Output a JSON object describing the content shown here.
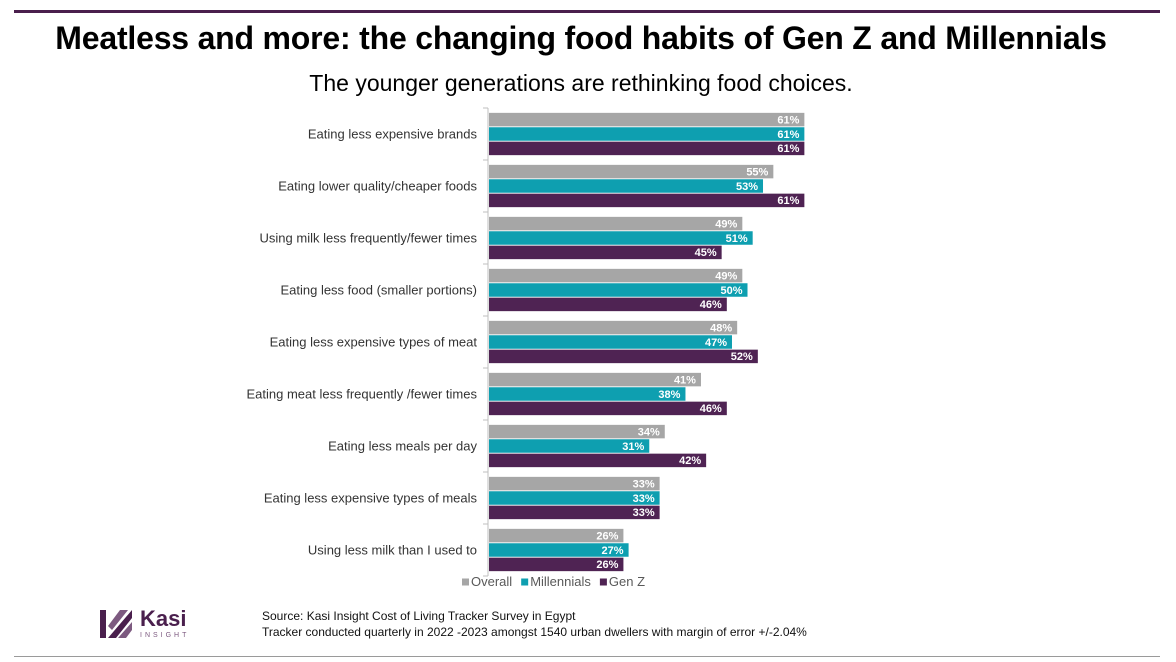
{
  "header": {
    "title": "Meatless and more: the changing food habits of Gen Z and Millennials",
    "subtitle": "The younger generations are rethinking food choices."
  },
  "chart_data": {
    "type": "bar",
    "orientation": "horizontal",
    "categories": [
      "Eating less expensive brands",
      "Eating lower quality/cheaper foods",
      "Using milk less frequently/fewer times",
      "Eating less food (smaller portions)",
      "Eating less expensive types of meat",
      "Eating meat less frequently /fewer times",
      "Eating less meals per day",
      "Eating less expensive types of meals",
      "Using less milk than I used to"
    ],
    "series": [
      {
        "name": "Overall",
        "color": "#a6a6a6",
        "values": [
          61,
          55,
          49,
          49,
          48,
          41,
          34,
          33,
          26
        ]
      },
      {
        "name": "Millennials",
        "color": "#0e9fb0",
        "values": [
          61,
          53,
          51,
          50,
          47,
          38,
          31,
          33,
          27
        ]
      },
      {
        "name": "Gen Z",
        "color": "#4f2353",
        "values": [
          61,
          61,
          45,
          46,
          52,
          46,
          42,
          33,
          26
        ]
      }
    ],
    "value_suffix": "%",
    "xlim": [
      0,
      100
    ],
    "grid": false,
    "legend_position": "bottom"
  },
  "logo": {
    "name": "Kasi",
    "tagline": "INSIGHT",
    "color": "#4a1f4d"
  },
  "footer": {
    "source_line": "Source: Kasi Insight Cost of Living Tracker Survey  in Egypt",
    "note_line": "Tracker conducted quarterly in 2022 -2023 amongst 1540 urban dwellers with margin of error +/-2.04%"
  }
}
